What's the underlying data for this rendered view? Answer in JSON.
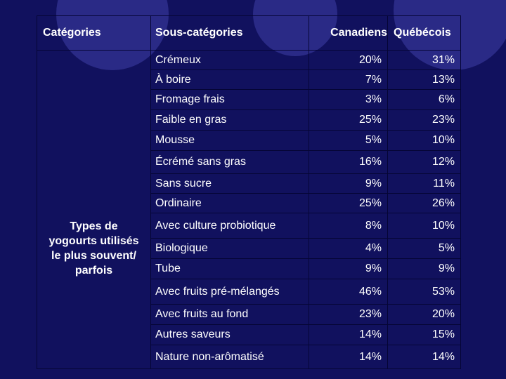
{
  "table": {
    "headers": {
      "category": "Catégories",
      "subcategory": "Sous-catégories",
      "canadiens": "Canadiens",
      "quebecois": "Québécois"
    },
    "category_label_lines": [
      "Types de",
      "yogourts utilisés",
      "le plus souvent/",
      "parfois"
    ],
    "rows": [
      {
        "sub": "Crémeux",
        "can": "20%",
        "que": "31%"
      },
      {
        "sub": "À boire",
        "can": "7%",
        "que": "13%"
      },
      {
        "sub": "Fromage frais",
        "can": "3%",
        "que": "6%"
      },
      {
        "sub": "Faible en gras",
        "can": "25%",
        "que": "23%"
      },
      {
        "sub": "Mousse",
        "can": "5%",
        "que": "10%"
      },
      {
        "sub": "Écrémé sans gras",
        "can": "16%",
        "que": "12%"
      },
      {
        "sub": "Sans sucre",
        "can": "9%",
        "que": "11%"
      },
      {
        "sub": "Ordinaire",
        "can": "25%",
        "que": "26%"
      },
      {
        "sub": "Avec culture probiotique",
        "can": "8%",
        "que": "10%"
      },
      {
        "sub": "Biologique",
        "can": "4%",
        "que": "5%"
      },
      {
        "sub": "Tube",
        "can": "9%",
        "que": "9%"
      },
      {
        "sub": "Avec fruits pré-mélangés",
        "can": "46%",
        "que": "53%"
      },
      {
        "sub": "Avec fruits au fond",
        "can": "23%",
        "que": "20%"
      },
      {
        "sub": "Autres saveurs",
        "can": "14%",
        "que": "15%"
      },
      {
        "sub": "Nature non-arômatisé",
        "can": "14%",
        "que": "14%"
      }
    ]
  }
}
